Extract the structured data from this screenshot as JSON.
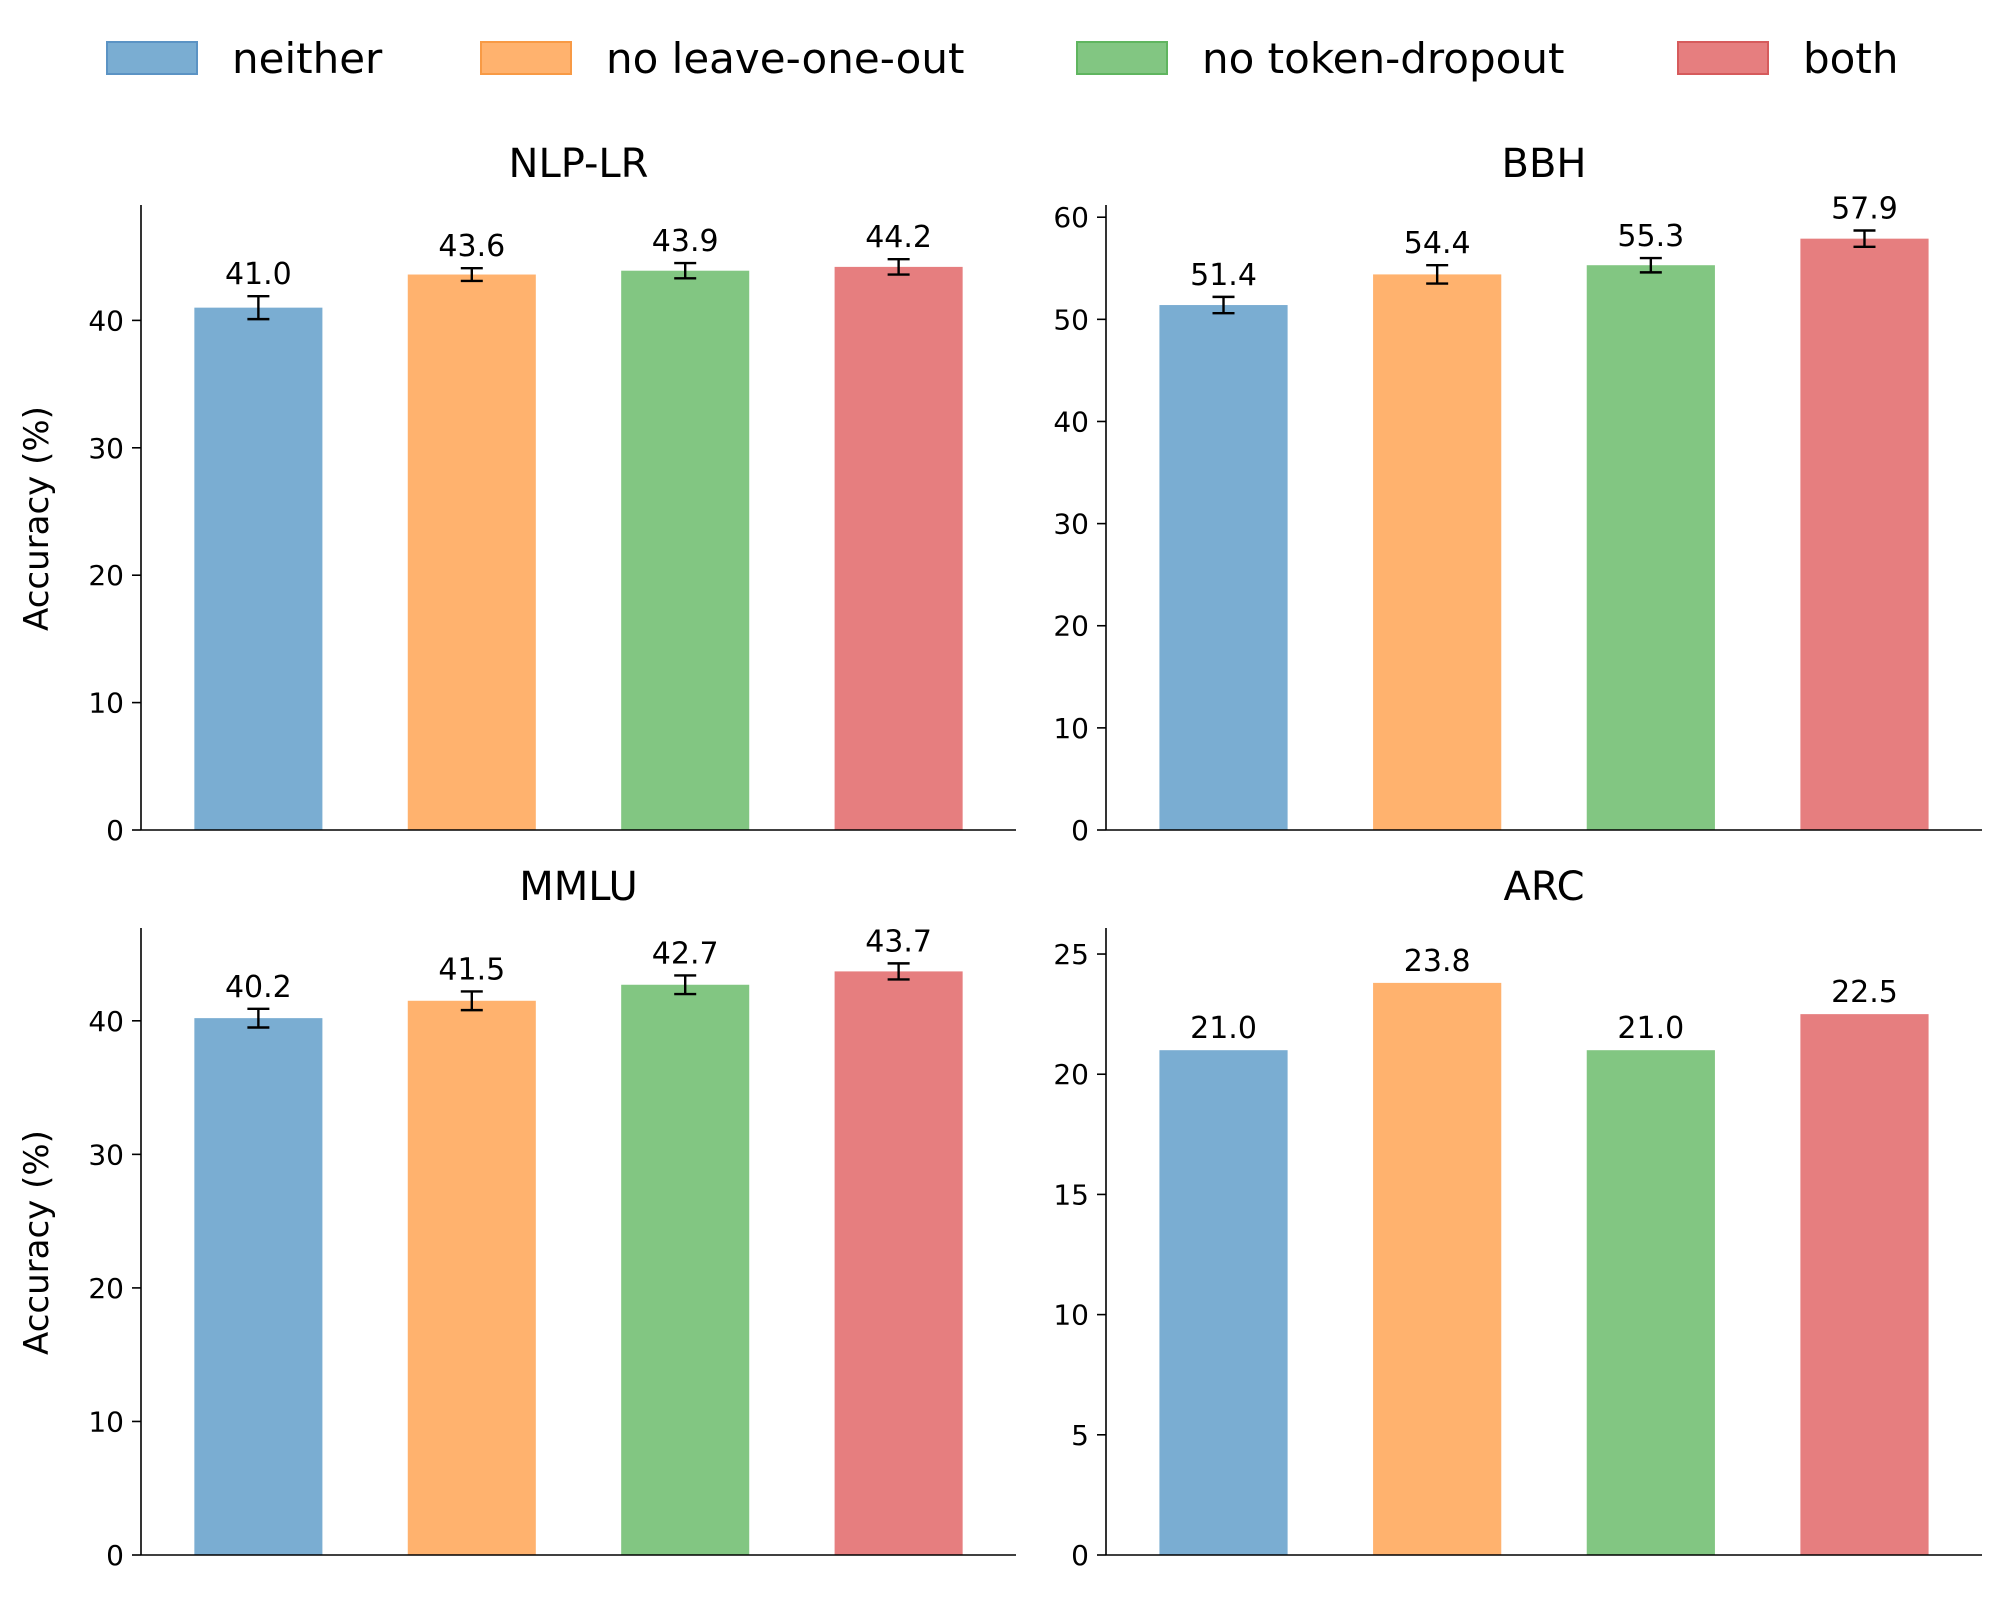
{
  "legend": [
    {
      "label": "neither",
      "color": "#7aadd2",
      "edge": "#5b93c4"
    },
    {
      "label": "no leave-one-out",
      "color": "#ffb26e",
      "edge": "#f89a45"
    },
    {
      "label": "no token-dropout",
      "color": "#82c682",
      "edge": "#5fb55f"
    },
    {
      "label": "both",
      "color": "#e67e7f",
      "edge": "#d65b5c"
    }
  ],
  "chart_data": [
    {
      "type": "bar",
      "title": "NLP-LR",
      "ylabel": "Accuracy (%)",
      "categories": [
        "neither",
        "no leave-one-out",
        "no token-dropout",
        "both"
      ],
      "values": [
        41.0,
        43.6,
        43.9,
        44.2
      ],
      "errors": [
        0.9,
        0.5,
        0.6,
        0.6
      ],
      "value_labels": [
        "41.0",
        "43.6",
        "43.9",
        "44.2"
      ],
      "ylim": [
        0,
        48.9
      ],
      "yticks": [
        0,
        10,
        20,
        30,
        40
      ],
      "grid": false
    },
    {
      "type": "bar",
      "title": "BBH",
      "ylabel": "",
      "categories": [
        "neither",
        "no leave-one-out",
        "no token-dropout",
        "both"
      ],
      "values": [
        51.4,
        54.4,
        55.3,
        57.9
      ],
      "errors": [
        0.8,
        0.9,
        0.7,
        0.8
      ],
      "value_labels": [
        "51.4",
        "54.4",
        "55.3",
        "57.9"
      ],
      "ylim": [
        0,
        61.0
      ],
      "yticks": [
        0,
        10,
        20,
        30,
        40,
        50,
        60
      ],
      "grid": false
    },
    {
      "type": "bar",
      "title": "MMLU",
      "ylabel": "Accuracy (%)",
      "categories": [
        "neither",
        "no leave-one-out",
        "no token-dropout",
        "both"
      ],
      "values": [
        40.2,
        41.5,
        42.7,
        43.7
      ],
      "errors": [
        0.7,
        0.7,
        0.7,
        0.6
      ],
      "value_labels": [
        "40.2",
        "41.5",
        "42.7",
        "43.7"
      ],
      "ylim": [
        0,
        46.8
      ],
      "yticks": [
        0,
        10,
        20,
        30,
        40
      ],
      "grid": false
    },
    {
      "type": "bar",
      "title": "ARC",
      "ylabel": "",
      "categories": [
        "neither",
        "no leave-one-out",
        "no token-dropout",
        "both"
      ],
      "values": [
        21.0,
        23.8,
        21.0,
        22.5
      ],
      "errors": [
        0,
        0,
        0,
        0
      ],
      "value_labels": [
        "21.0",
        "23.8",
        "21.0",
        "22.5"
      ],
      "ylim": [
        0,
        26.0
      ],
      "yticks": [
        0,
        5,
        10,
        15,
        20,
        25
      ],
      "grid": false
    }
  ]
}
